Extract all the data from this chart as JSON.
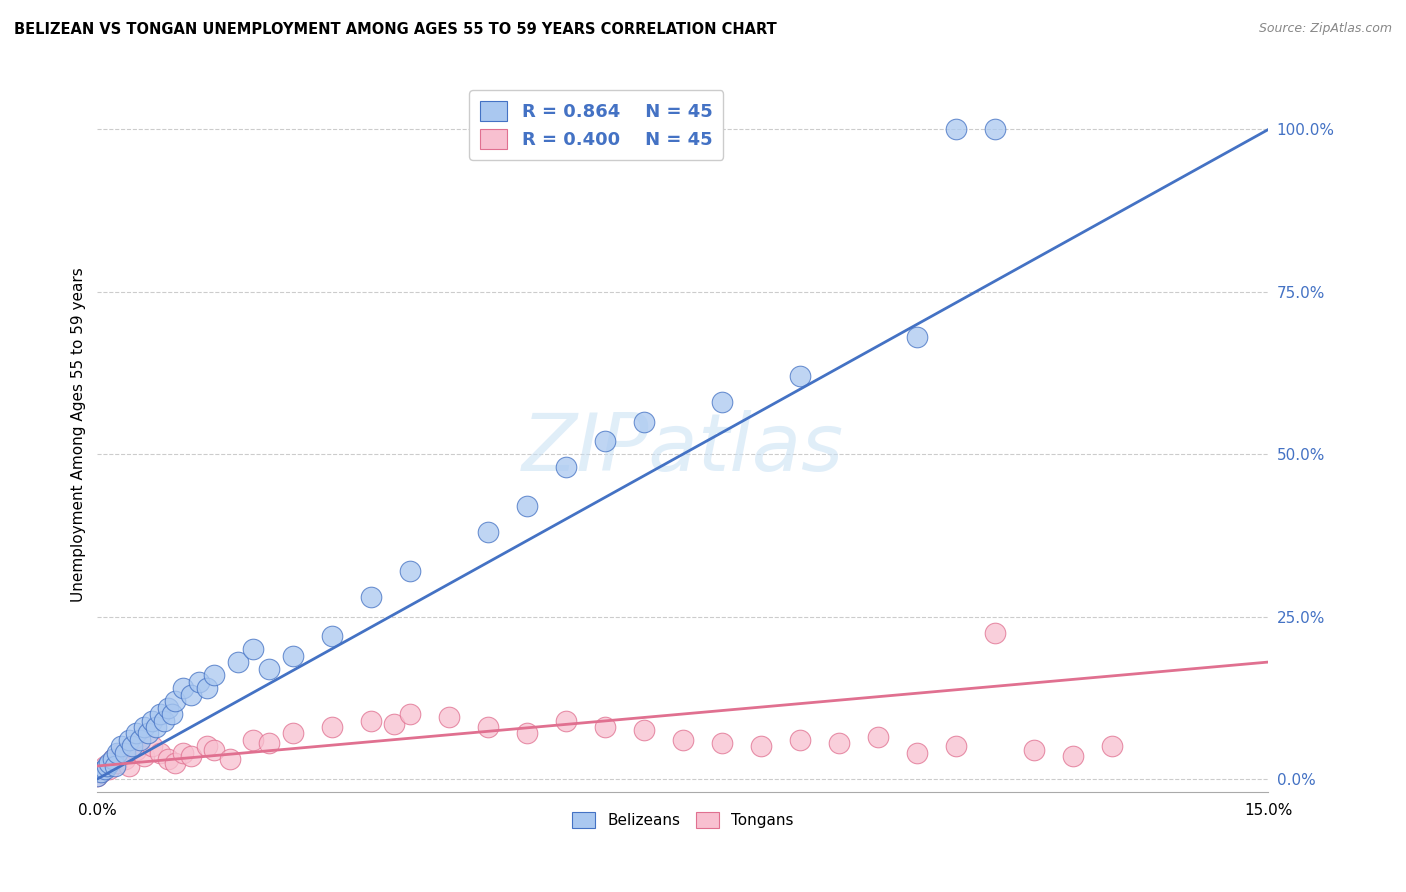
{
  "title": "BELIZEAN VS TONGAN UNEMPLOYMENT AMONG AGES 55 TO 59 YEARS CORRELATION CHART",
  "source": "Source: ZipAtlas.com",
  "ylabel": "Unemployment Among Ages 55 to 59 years",
  "xlim": [
    0.0,
    15.0
  ],
  "ylim": [
    -2.0,
    108.0
  ],
  "yticks_right": [
    0.0,
    25.0,
    50.0,
    75.0,
    100.0
  ],
  "ytick_labels_right": [
    "0.0%",
    "25.0%",
    "50.0%",
    "75.0%",
    "100.0%"
  ],
  "grid_color": "#cccccc",
  "background_color": "#ffffff",
  "belizean_color": "#aac8f0",
  "tongan_color": "#f8c0d0",
  "belizean_line_color": "#4472c4",
  "tongan_line_color": "#e07090",
  "R_belizean": 0.864,
  "R_tongan": 0.4,
  "N": 45,
  "legend_text_color": "#4472c4",
  "watermark": "ZIPatlas",
  "bel_line_x0": 0.0,
  "bel_line_y0": 0.0,
  "bel_line_x1": 15.0,
  "bel_line_y1": 100.0,
  "ton_line_x0": 0.0,
  "ton_line_y0": 2.0,
  "ton_line_x1": 15.0,
  "ton_line_y1": 18.0,
  "bel_scatter_x": [
    0.0,
    0.05,
    0.1,
    0.12,
    0.15,
    0.2,
    0.22,
    0.25,
    0.3,
    0.35,
    0.4,
    0.45,
    0.5,
    0.55,
    0.6,
    0.65,
    0.7,
    0.75,
    0.8,
    0.85,
    0.9,
    0.95,
    1.0,
    1.1,
    1.2,
    1.3,
    1.4,
    1.5,
    1.8,
    2.0,
    2.2,
    2.5,
    3.0,
    3.5,
    4.0,
    5.0,
    5.5,
    6.0,
    6.5,
    7.0,
    8.0,
    9.0,
    10.5,
    11.0,
    11.5
  ],
  "bel_scatter_y": [
    0.5,
    1.0,
    1.5,
    2.0,
    2.5,
    3.0,
    2.0,
    4.0,
    5.0,
    4.0,
    6.0,
    5.0,
    7.0,
    6.0,
    8.0,
    7.0,
    9.0,
    8.0,
    10.0,
    9.0,
    11.0,
    10.0,
    12.0,
    14.0,
    13.0,
    15.0,
    14.0,
    16.0,
    18.0,
    20.0,
    17.0,
    19.0,
    22.0,
    28.0,
    32.0,
    38.0,
    42.0,
    48.0,
    52.0,
    55.0,
    58.0,
    62.0,
    68.0,
    100.0,
    100.0
  ],
  "ton_scatter_x": [
    0.0,
    0.05,
    0.1,
    0.15,
    0.2,
    0.25,
    0.3,
    0.35,
    0.4,
    0.5,
    0.6,
    0.7,
    0.8,
    0.9,
    1.0,
    1.1,
    1.2,
    1.4,
    1.5,
    1.7,
    2.0,
    2.2,
    2.5,
    3.0,
    3.5,
    3.8,
    4.0,
    4.5,
    5.0,
    5.5,
    6.0,
    6.5,
    7.0,
    7.5,
    8.0,
    8.5,
    9.0,
    9.5,
    10.0,
    10.5,
    11.0,
    11.5,
    12.0,
    12.5,
    13.0
  ],
  "ton_scatter_y": [
    0.5,
    1.0,
    2.0,
    1.5,
    3.0,
    2.5,
    4.0,
    3.0,
    2.0,
    4.5,
    3.5,
    5.0,
    4.0,
    3.0,
    2.5,
    4.0,
    3.5,
    5.0,
    4.5,
    3.0,
    6.0,
    5.5,
    7.0,
    8.0,
    9.0,
    8.5,
    10.0,
    9.5,
    8.0,
    7.0,
    9.0,
    8.0,
    7.5,
    6.0,
    5.5,
    5.0,
    6.0,
    5.5,
    6.5,
    4.0,
    5.0,
    22.5,
    4.5,
    3.5,
    5.0
  ]
}
